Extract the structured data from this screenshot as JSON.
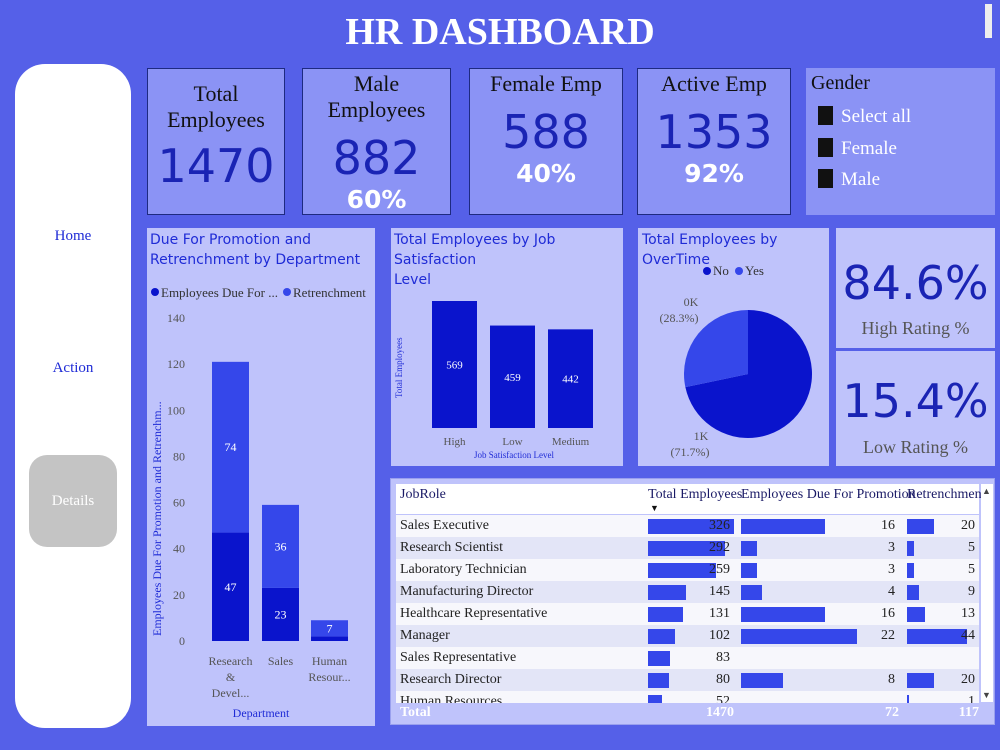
{
  "header": {
    "title": "HR DASHBOARD"
  },
  "nav": {
    "home": "Home",
    "action": "Action",
    "details": "Details"
  },
  "kpis": {
    "total": {
      "label_line1": "Total",
      "label_line2": "Employees",
      "value": "1470"
    },
    "male": {
      "label": "Male Employees",
      "value": "882",
      "pct": "60%"
    },
    "female": {
      "label": "Female Emp",
      "value": "588",
      "pct": "40%"
    },
    "active": {
      "label": "Active Emp",
      "value": "1353",
      "pct": "92%"
    }
  },
  "gender_filter": {
    "title": "Gender",
    "options": [
      "Select all",
      "Female",
      "Male"
    ]
  },
  "colors": {
    "dark_series": "#0a14cc",
    "light_series": "#3547ea",
    "background": "#5560e8",
    "panel": "#bfc3fb",
    "card": "#8b93f5"
  },
  "ratings": {
    "high_value": "84.6%",
    "high_label": "High Rating %",
    "low_value": "15.4%",
    "low_label": "Low Rating %"
  },
  "chart_data": [
    {
      "type": "bar",
      "stacked": true,
      "title_line1": "Due For Promotion and",
      "title_line2": "Retrenchment by Department",
      "legend": [
        "Employees Due For ...",
        "Retrenchment"
      ],
      "categories": [
        [
          "Research",
          "&",
          "Devel..."
        ],
        [
          "Sales"
        ],
        [
          "Human",
          "Resour..."
        ]
      ],
      "series": [
        {
          "name": "Employees Due For Promotion",
          "values": [
            47,
            23,
            2
          ],
          "labels": [
            "47",
            "23",
            ""
          ]
        },
        {
          "name": "Retrenchment",
          "values": [
            74,
            36,
            7
          ],
          "labels": [
            "74",
            "36",
            "7"
          ]
        }
      ],
      "yticks": [
        "0",
        "20",
        "40",
        "60",
        "80",
        "100",
        "120",
        "140"
      ],
      "ylim": [
        0,
        140
      ],
      "xlabel": "Department",
      "ylabel": "Employees Due For Promotion and Retrenchm..."
    },
    {
      "type": "bar",
      "title_line1": "Total Employees by Job Satisfaction",
      "title_line2": "Level",
      "categories": [
        "High",
        "Low",
        "Medium"
      ],
      "values": [
        569,
        459,
        442
      ],
      "labels": [
        "569",
        "459",
        "442"
      ],
      "ylim": [
        0,
        600
      ],
      "xlabel": "Job Satisfaction Level",
      "ylabel": "Total Employees"
    },
    {
      "type": "pie",
      "title": "Total Employees by OverTime",
      "legend": [
        "No",
        "Yes"
      ],
      "slices": [
        {
          "name": "No",
          "value": 1054,
          "pct": 71.7,
          "label_value": "1K",
          "label_pct": "(71.7%)"
        },
        {
          "name": "Yes",
          "value": 416,
          "pct": 28.3,
          "label_value": "0K",
          "label_pct": "(28.3%)"
        }
      ]
    },
    {
      "type": "table",
      "columns": [
        "JobRole",
        "Total Employees",
        "Employees Due For Promotion",
        "Retrenchment"
      ],
      "rows": [
        [
          "Sales Executive",
          326,
          16,
          20
        ],
        [
          "Research Scientist",
          292,
          3,
          5
        ],
        [
          "Laboratory Technician",
          259,
          3,
          5
        ],
        [
          "Manufacturing Director",
          145,
          4,
          9
        ],
        [
          "Healthcare Representative",
          131,
          16,
          13
        ],
        [
          "Manager",
          102,
          22,
          44
        ],
        [
          "Sales Representative",
          83,
          "",
          ""
        ],
        [
          "Research Director",
          80,
          8,
          20
        ],
        [
          "Human Resources",
          52,
          "",
          1
        ]
      ],
      "totals": [
        "Total",
        "1470",
        "72",
        "117"
      ],
      "max": [
        326,
        22,
        44
      ]
    }
  ]
}
